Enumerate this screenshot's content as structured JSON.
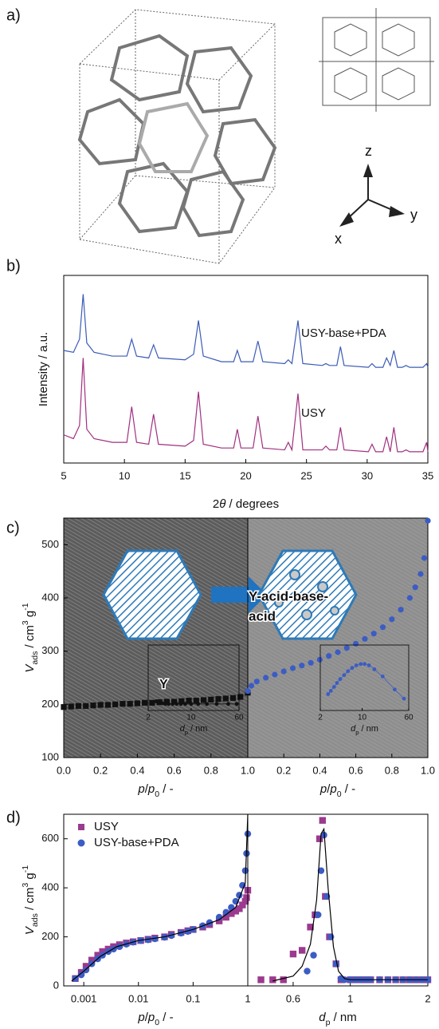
{
  "panel_a": {
    "label": "a)",
    "axes": [
      "z",
      "x",
      "y"
    ]
  },
  "chart_data": [
    {
      "type": "line",
      "panel_label": "b)",
      "ylabel": "Intensity / a.u.",
      "xlabel": [
        "2",
        "θ",
        " / degrees"
      ],
      "xlim": [
        5,
        35
      ],
      "xticks": [
        5,
        10,
        15,
        20,
        25,
        30,
        35
      ],
      "ylim": [
        0,
        100
      ],
      "legend": "inline",
      "x": [
        5,
        5.8,
        6.3,
        6.6,
        6.9,
        7.5,
        9,
        10.2,
        10.6,
        11,
        12,
        12.4,
        12.8,
        15,
        15.7,
        16.1,
        16.5,
        18,
        19,
        19.3,
        19.6,
        20.6,
        21.0,
        21.4,
        23.2,
        23.5,
        23.8,
        24.3,
        24.7,
        26.3,
        26.6,
        26.9,
        27.5,
        27.8,
        28.1,
        30.1,
        30.4,
        30.7,
        31.3,
        31.6,
        31.9,
        32.2,
        32.5,
        32.9,
        33.2,
        33.5,
        34.6,
        34.9,
        35
      ],
      "series": [
        {
          "name": "USY-base+PDA",
          "color": "#3b5bb5",
          "values": [
            60,
            59,
            66,
            90,
            64,
            59,
            57,
            57,
            66,
            57,
            56,
            63,
            56,
            55,
            58,
            76,
            57,
            54,
            54,
            60,
            54,
            54,
            65,
            54,
            53,
            55,
            53,
            76,
            53,
            52,
            53,
            52,
            52,
            62,
            52,
            51,
            53,
            51,
            51,
            56,
            52,
            60,
            51,
            51,
            52,
            51,
            51,
            53,
            51
          ]
        },
        {
          "name": "USY",
          "color": "#a0307f",
          "values": [
            15,
            13,
            20,
            56,
            18,
            13,
            11,
            11,
            30,
            11,
            10,
            26,
            10,
            9,
            12,
            38,
            10,
            8,
            8,
            18,
            8,
            8,
            25,
            8,
            7,
            11,
            7,
            37,
            7,
            7,
            9,
            7,
            7,
            19,
            7,
            6,
            10,
            6,
            6,
            14,
            6,
            19,
            6,
            6,
            7,
            6,
            6,
            11,
            6
          ]
        }
      ]
    },
    {
      "type": "scatter",
      "panel_label": "c)",
      "ylabel": [
        "V",
        "ads",
        " / cm",
        "3",
        " g",
        "-1"
      ],
      "xlabel": [
        "p",
        "/",
        "p",
        "0",
        " / -"
      ],
      "xlim": [
        0,
        1
      ],
      "xticks": [
        {
          "value": 0,
          "label": "0.0"
        },
        0.2,
        0.4,
        0.6,
        0.8,
        {
          "value": 1,
          "label": "1.0"
        }
      ],
      "ylim": [
        100,
        550
      ],
      "yticks": [
        100,
        200,
        300,
        400,
        500
      ],
      "annotations": [
        "Y"
      ],
      "series": [
        {
          "color": "#111111",
          "marker": "square",
          "x": [
            0,
            0.04,
            0.08,
            0.12,
            0.16,
            0.2,
            0.24,
            0.28,
            0.32,
            0.36,
            0.4,
            0.44,
            0.48,
            0.52,
            0.56,
            0.6,
            0.64,
            0.68,
            0.72,
            0.76,
            0.8,
            0.84,
            0.88,
            0.92,
            0.96,
            1.0
          ],
          "values": [
            195,
            196,
            197,
            197,
            198,
            199,
            199,
            200,
            201,
            201,
            202,
            203,
            203,
            204,
            205,
            205,
            206,
            207,
            207,
            208,
            209,
            210,
            211,
            212,
            214,
            222
          ]
        }
      ]
    },
    {
      "type": "scatter",
      "xlabel": [
        "p",
        "/",
        "p",
        "0",
        " / -"
      ],
      "xlim": [
        0,
        1
      ],
      "xticks": [
        0.2,
        0.4,
        0.6,
        0.8,
        {
          "value": 1,
          "label": "1.0"
        }
      ],
      "ylim": [
        100,
        550
      ],
      "annotations": [
        "Y-acid-base-",
        "acid"
      ],
      "series": [
        {
          "color": "#3c5cc4",
          "marker": "circle",
          "x": [
            0,
            0.02,
            0.05,
            0.1,
            0.15,
            0.2,
            0.25,
            0.3,
            0.35,
            0.4,
            0.45,
            0.5,
            0.55,
            0.6,
            0.65,
            0.7,
            0.75,
            0.8,
            0.85,
            0.9,
            0.93,
            0.96,
            0.98,
            1.0
          ],
          "values": [
            225,
            235,
            243,
            250,
            256,
            262,
            268,
            273,
            278,
            284,
            291,
            298,
            306,
            314,
            323,
            333,
            345,
            360,
            378,
            400,
            420,
            445,
            475,
            545
          ]
        }
      ]
    },
    {
      "type": "scatter",
      "xlabel": [
        "d",
        "p",
        " / nm"
      ],
      "xlog": true,
      "xlim": [
        2,
        60
      ],
      "xticks": [
        2,
        10,
        60
      ],
      "ylim": [
        0,
        10
      ],
      "series": [
        {
          "color": "#111111",
          "marker": "circle",
          "line": true,
          "x": [
            2.7,
            3.0,
            3.4,
            3.8,
            4.3,
            5,
            5.8,
            6.8,
            8,
            10,
            13,
            18,
            26,
            40,
            55
          ],
          "values": [
            1.4,
            1.2,
            1.1,
            1.0,
            1.0,
            1.0,
            1.0,
            1.0,
            1.0,
            1.0,
            1.0,
            1.0,
            1.0,
            1.0,
            1.0
          ]
        }
      ]
    },
    {
      "type": "scatter",
      "xlabel": [
        "d",
        "p",
        " / nm"
      ],
      "xlog": true,
      "xlim": [
        2,
        60
      ],
      "xticks": [
        2,
        10,
        60
      ],
      "ylim": [
        0,
        10
      ],
      "series": [
        {
          "color": "#3c5cc4",
          "marker": "circle",
          "line": true,
          "x": [
            2.7,
            3.0,
            3.4,
            3.8,
            4.3,
            5,
            5.8,
            6.8,
            8,
            9.5,
            11,
            13,
            16,
            22,
            35,
            50
          ],
          "values": [
            2.5,
            3.0,
            3.6,
            4.2,
            4.8,
            5.4,
            6.0,
            6.5,
            6.9,
            7.1,
            7.1,
            6.9,
            6.3,
            5.2,
            3.2,
            1.8
          ]
        }
      ]
    },
    {
      "type": "scatter",
      "panel_label": "d)",
      "ylabel": [
        "V",
        "ads",
        " / cm",
        "3",
        " g",
        "-1"
      ],
      "xlabel": [
        "p",
        "/",
        "p",
        "0",
        " / -"
      ],
      "xlog": true,
      "xlim": [
        0.00043,
        1
      ],
      "xticks": [
        0.001,
        0.01,
        0.1,
        1
      ],
      "ylim": [
        0,
        700
      ],
      "yticks": [
        0,
        200,
        400,
        600
      ],
      "legend": "upper left",
      "series": [
        {
          "name": "USY",
          "color": "#9b3a8e",
          "marker": "square",
          "x": [
            0.0007,
            0.0009,
            0.0011,
            0.0014,
            0.0018,
            0.0022,
            0.0028,
            0.0035,
            0.0045,
            0.006,
            0.008,
            0.011,
            0.015,
            0.02,
            0.03,
            0.04,
            0.06,
            0.08,
            0.1,
            0.15,
            0.2,
            0.3,
            0.4,
            0.5,
            0.6,
            0.7,
            0.8,
            0.9,
            0.95,
            1.0
          ],
          "values": [
            30,
            55,
            80,
            105,
            125,
            140,
            150,
            160,
            168,
            175,
            180,
            185,
            190,
            195,
            200,
            210,
            218,
            225,
            230,
            240,
            250,
            265,
            280,
            295,
            305,
            315,
            330,
            345,
            360,
            390
          ]
        },
        {
          "name": "USY-base+PDA",
          "color": "#3c5cc4",
          "marker": "circle",
          "x": [
            0.0007,
            0.0009,
            0.0011,
            0.0014,
            0.0018,
            0.0022,
            0.0028,
            0.0035,
            0.0045,
            0.006,
            0.008,
            0.011,
            0.015,
            0.02,
            0.03,
            0.04,
            0.06,
            0.08,
            0.1,
            0.15,
            0.2,
            0.3,
            0.4,
            0.5,
            0.6,
            0.7,
            0.8,
            0.9,
            0.95,
            1.0
          ],
          "values": [
            30,
            45,
            65,
            90,
            110,
            125,
            140,
            150,
            160,
            170,
            178,
            185,
            188,
            192,
            198,
            205,
            215,
            222,
            230,
            245,
            258,
            280,
            300,
            320,
            345,
            370,
            410,
            470,
            540,
            620
          ]
        },
        {
          "color": "#000000",
          "line": true,
          "x": [
            0.0006,
            0.001,
            0.002,
            0.004,
            0.01,
            0.03,
            0.1,
            0.3,
            0.6,
            0.9,
            1.0
          ],
          "values": [
            20,
            60,
            120,
            160,
            185,
            200,
            230,
            270,
            320,
            420,
            700
          ]
        }
      ]
    },
    {
      "type": "scatter",
      "xlabel": [
        "d",
        "p",
        " / nm"
      ],
      "xlog": true,
      "xlim": [
        0.4,
        2.0
      ],
      "xticks": [
        0.6,
        1,
        2
      ],
      "ylim": [
        0,
        700
      ],
      "series": [
        {
          "color": "#9b3a8e",
          "marker": "square",
          "x": [
            0.45,
            0.5,
            0.55,
            0.6,
            0.65,
            0.7,
            0.73,
            0.76,
            0.78,
            0.8,
            0.83,
            0.88,
            0.92,
            1.0,
            1.05,
            1.1,
            1.15,
            1.2,
            1.3,
            1.4,
            1.5,
            1.6,
            1.7,
            1.8,
            1.9,
            2.0
          ],
          "values": [
            25,
            25,
            25,
            130,
            145,
            240,
            290,
            600,
            675,
            365,
            200,
            90,
            25,
            25,
            25,
            25,
            25,
            25,
            25,
            25,
            25,
            25,
            25,
            25,
            25,
            25
          ]
        },
        {
          "color": "#3c5cc4",
          "marker": "circle",
          "x": [
            0.68,
            0.72,
            0.75,
            0.77,
            0.79,
            0.81,
            0.84,
            0.88,
            0.92,
            0.95,
            1.0,
            1.05,
            1.1,
            1.15,
            1.2,
            1.3,
            1.4,
            1.5,
            1.6,
            1.7,
            1.8,
            1.9,
            2.0
          ],
          "values": [
            60,
            125,
            290,
            470,
            615,
            365,
            200,
            90,
            30,
            25,
            25,
            25,
            25,
            25,
            25,
            25,
            25,
            25,
            25,
            25,
            25,
            25,
            25
          ]
        },
        {
          "color": "#000000",
          "line": true,
          "x": [
            0.5,
            0.6,
            0.65,
            0.7,
            0.74,
            0.77,
            0.79,
            0.82,
            0.86,
            0.9,
            0.95,
            1.0,
            2.0
          ],
          "values": [
            20,
            40,
            80,
            170,
            350,
            620,
            640,
            400,
            160,
            60,
            30,
            25,
            25
          ]
        }
      ]
    }
  ]
}
